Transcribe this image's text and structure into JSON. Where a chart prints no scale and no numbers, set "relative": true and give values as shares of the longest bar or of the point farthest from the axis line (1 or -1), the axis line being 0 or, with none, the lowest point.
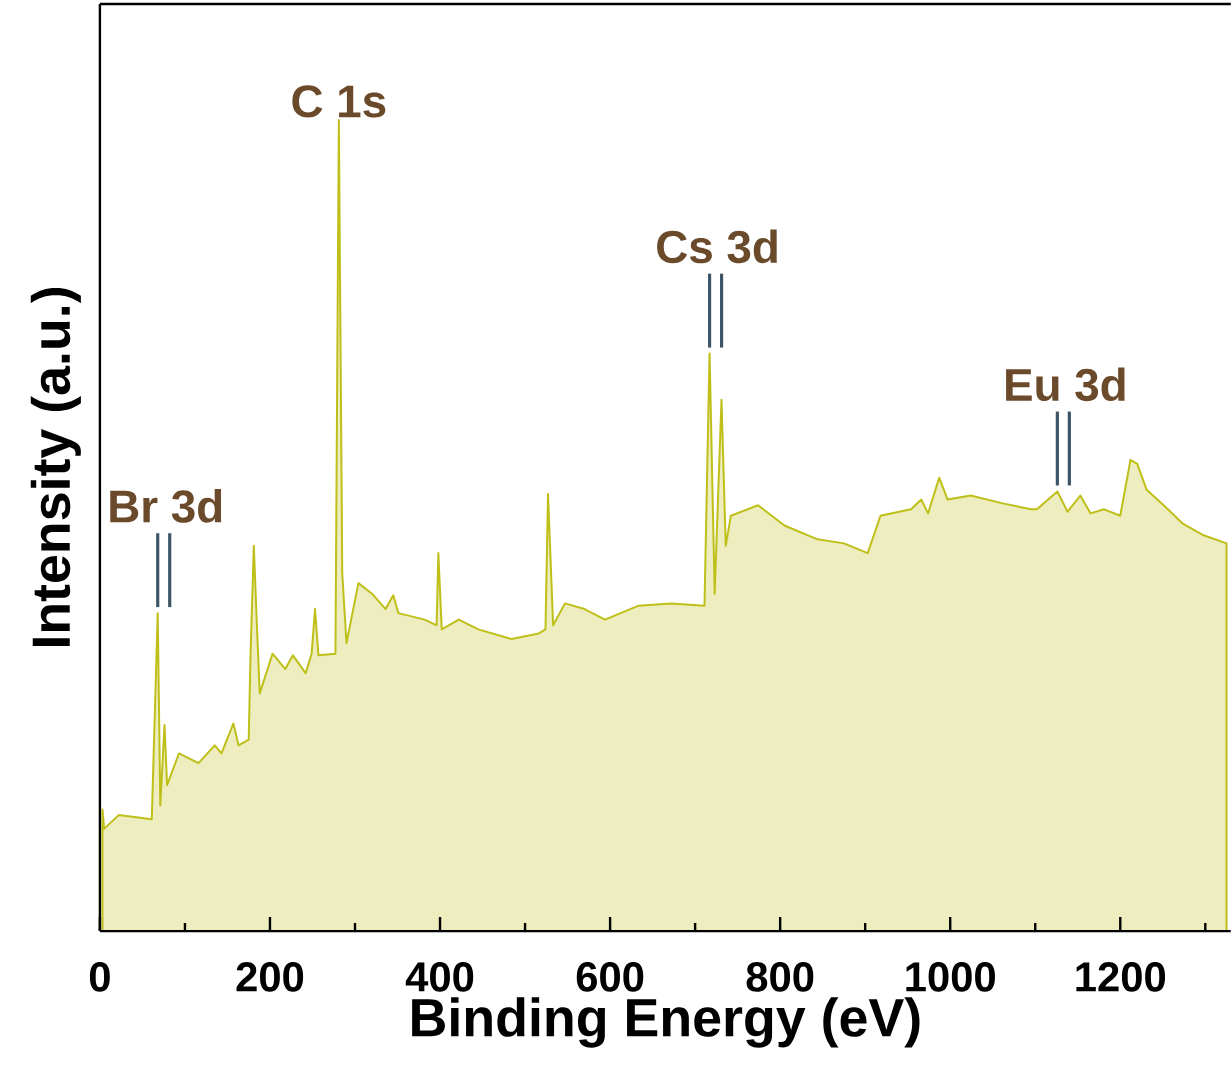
{
  "chart_data": {
    "type": "area",
    "relative": true,
    "color": "#bfbf1a",
    "xlabel": "Binding Energy (eV)",
    "ylabel": "Intensity (a.u.)",
    "xlim": [
      0,
      1330
    ],
    "xticks": [
      0,
      {
        "value": 100,
        "label": null
      },
      200,
      {
        "value": 300,
        "label": null
      },
      400,
      {
        "value": 500,
        "label": null
      },
      600,
      {
        "value": 700,
        "label": null
      },
      800,
      {
        "value": 900,
        "label": null
      },
      1000,
      {
        "value": 1100,
        "label": null
      },
      1200,
      {
        "value": 1300,
        "label": null
      }
    ],
    "x": [
      3,
      5,
      22,
      61,
      68,
      71,
      76,
      79,
      93,
      116,
      135,
      143,
      157,
      163,
      175,
      177,
      181,
      185,
      188,
      203,
      218,
      227,
      242,
      249,
      253,
      257,
      277,
      281,
      285,
      290,
      304,
      320,
      336,
      345,
      351,
      382,
      396,
      398,
      402,
      422,
      445,
      484,
      516,
      524,
      527,
      533,
      547,
      570,
      594,
      633,
      672,
      711,
      717,
      723,
      731,
      736,
      742,
      774,
      805,
      844,
      875,
      903,
      918,
      954,
      966,
      974,
      987,
      997,
      1024,
      1063,
      1095,
      1102,
      1126,
      1138,
      1153,
      1165,
      1181,
      1200,
      1212,
      1220,
      1231,
      1251,
      1274,
      1298,
      1325
    ],
    "values": [
      0.15,
      0.126,
      0.143,
      0.138,
      0.392,
      0.155,
      0.254,
      0.18,
      0.219,
      0.207,
      0.229,
      0.219,
      0.256,
      0.229,
      0.236,
      0.335,
      0.475,
      0.367,
      0.293,
      0.342,
      0.323,
      0.34,
      0.318,
      0.342,
      0.397,
      0.34,
      0.342,
      1.0,
      0.441,
      0.355,
      0.429,
      0.416,
      0.397,
      0.414,
      0.392,
      0.384,
      0.377,
      0.466,
      0.372,
      0.384,
      0.372,
      0.36,
      0.367,
      0.372,
      0.539,
      0.377,
      0.404,
      0.397,
      0.384,
      0.401,
      0.404,
      0.401,
      0.712,
      0.416,
      0.655,
      0.475,
      0.512,
      0.525,
      0.5,
      0.483,
      0.478,
      0.466,
      0.512,
      0.52,
      0.532,
      0.515,
      0.559,
      0.532,
      0.537,
      0.527,
      0.52,
      0.52,
      0.542,
      0.517,
      0.537,
      0.515,
      0.52,
      0.512,
      0.581,
      0.576,
      0.544,
      0.525,
      0.502,
      0.488,
      0.478
    ],
    "annotations": [
      {
        "text": "Br 3d",
        "x": 68,
        "y": 0.392
      },
      {
        "text": "C 1s",
        "x": 281,
        "y": 1.0
      },
      {
        "text": "Cs 3d",
        "x": 717,
        "y": 0.712
      },
      {
        "text": "Eu 3d",
        "x": 1126,
        "y": 0.542
      }
    ]
  }
}
